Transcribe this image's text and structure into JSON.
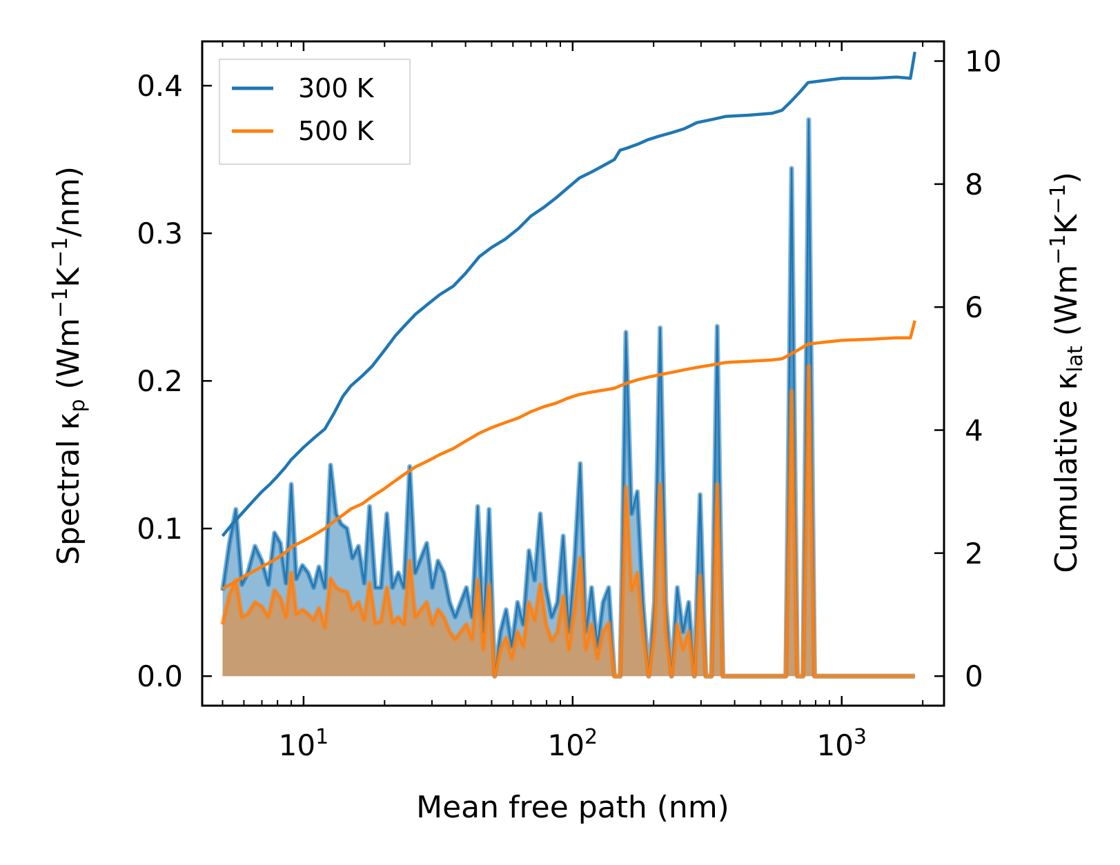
{
  "chart_data": {
    "type": "line",
    "xscale": "log",
    "xlabel": "Mean free path (nm)",
    "ylabel_left": "Spectral κp (Wm−1K−1/nm)",
    "ylabel_right": "Cumulative κlat (Wm−1K−1)",
    "ylabel_left_parts": {
      "pre": "Spectral κ",
      "sub": "p",
      "mid1": " (Wm",
      "sup1": "−1",
      "mid2": "K",
      "sup2": "−1",
      "post": "/nm)"
    },
    "ylabel_right_parts": {
      "pre": "Cumulative κ",
      "sub": "lat",
      "mid1": " (Wm",
      "sup1": "−1",
      "mid2": "K",
      "sup2": "−1",
      "post": ")"
    },
    "xlim": [
      4.2,
      2400
    ],
    "ylim_left": [
      -0.02,
      0.43
    ],
    "ylim_right": [
      -0.48,
      10.32
    ],
    "x_ticks": [
      {
        "base": "10",
        "exp": "1",
        "value": 10
      },
      {
        "base": "10",
        "exp": "2",
        "value": 100
      },
      {
        "base": "10",
        "exp": "3",
        "value": 1000
      }
    ],
    "y_left_ticks": [
      "0.0",
      "0.1",
      "0.2",
      "0.3",
      "0.4"
    ],
    "y_right_ticks": [
      "0",
      "2",
      "4",
      "6",
      "8",
      "10"
    ],
    "legend": [
      {
        "label": "300 K",
        "color": "#1f77b4"
      },
      {
        "label": "500 K",
        "color": "#ff7f0e"
      }
    ],
    "legend_position": "top-left",
    "series": [
      {
        "name": "300 K spectral",
        "axis": "left",
        "color": "#1f77b4",
        "fill": true,
        "x": [
          5.0,
          5.3,
          5.6,
          5.9,
          6.2,
          6.6,
          7.0,
          7.4,
          7.8,
          8.2,
          8.6,
          9.0,
          9.4,
          9.9,
          10.4,
          10.9,
          11.4,
          12.0,
          12.6,
          13.2,
          13.8,
          14.5,
          15.2,
          16.0,
          16.8,
          17.6,
          18.5,
          19.4,
          20.4,
          21.4,
          22.5,
          23.6,
          24.8,
          26.0,
          27.3,
          28.7,
          30.1,
          31.6,
          33.2,
          34.9,
          36.6,
          38.4,
          40.3,
          42.3,
          44.4,
          46.6,
          48.9,
          51.3,
          53.9,
          56.6,
          59.4,
          62.4,
          65.5,
          68.8,
          72.2,
          75.8,
          79.6,
          83.6,
          87.8,
          92.2,
          96.8,
          101.6,
          106.7,
          112.0,
          117.6,
          123.5,
          129.7,
          136.2,
          143.0,
          150.2,
          157.7,
          165.6,
          173.9,
          182.6,
          191.7,
          201.3,
          211.4,
          222.0,
          233.1,
          244.8,
          257.0,
          269.9,
          283.4,
          297.6,
          312.5,
          328.1,
          344.5,
          361.7,
          379.8,
          398.8,
          418.7,
          440.0,
          462.0,
          485.0,
          509.0,
          535.0,
          562.0,
          590.0,
          620.0,
          651.0,
          684.0,
          718.0,
          754.0,
          792.0,
          832.0,
          874.0,
          918.0,
          964.0,
          1012.0,
          1063.0,
          1116.0,
          1172.0,
          1231.0,
          1293.0,
          1358.0,
          1426.0,
          1497.0,
          1572.0,
          1651.0,
          1734.0,
          1821.0,
          1870.0
        ],
        "y": [
          0.058,
          0.09,
          0.113,
          0.062,
          0.07,
          0.088,
          0.078,
          0.062,
          0.097,
          0.09,
          0.063,
          0.13,
          0.066,
          0.075,
          0.07,
          0.06,
          0.074,
          0.06,
          0.143,
          0.11,
          0.103,
          0.1,
          0.08,
          0.088,
          0.063,
          0.115,
          0.06,
          0.06,
          0.11,
          0.06,
          0.07,
          0.06,
          0.142,
          0.07,
          0.08,
          0.09,
          0.06,
          0.078,
          0.07,
          0.05,
          0.04,
          0.05,
          0.06,
          0.04,
          0.115,
          0.03,
          0.113,
          0.0,
          0.03,
          0.045,
          0.02,
          0.05,
          0.035,
          0.085,
          0.065,
          0.11,
          0.06,
          0.04,
          0.05,
          0.095,
          0.03,
          0.078,
          0.144,
          0.03,
          0.06,
          0.02,
          0.05,
          0.06,
          0.0,
          0.0,
          0.233,
          0.11,
          0.125,
          0.05,
          0.0,
          0.05,
          0.236,
          0.05,
          0.0,
          0.06,
          0.03,
          0.05,
          0.0,
          0.123,
          0.0,
          0.0,
          0.237,
          0.0,
          0.0,
          0.0,
          0.0,
          0.0,
          0.0,
          0.0,
          0.0,
          0.0,
          0.0,
          0.0,
          0.0,
          0.344,
          0.0,
          0.0,
          0.377,
          0.0,
          0.0,
          0.0,
          0.0,
          0.0,
          0.0,
          0.0,
          0.0,
          0.0,
          0.0,
          0.0,
          0.0,
          0.0,
          0.0,
          0.0,
          0.0,
          0.0,
          0.0,
          0.0
        ]
      },
      {
        "name": "500 K spectral",
        "axis": "left",
        "color": "#ff7f0e",
        "fill": true,
        "x": [
          5.0,
          5.3,
          5.6,
          5.9,
          6.2,
          6.6,
          7.0,
          7.4,
          7.8,
          8.2,
          8.6,
          9.0,
          9.4,
          9.9,
          10.4,
          10.9,
          11.4,
          12.0,
          12.6,
          13.2,
          13.8,
          14.5,
          15.2,
          16.0,
          16.8,
          17.6,
          18.5,
          19.4,
          20.4,
          21.4,
          22.5,
          23.6,
          24.8,
          26.0,
          27.3,
          28.7,
          30.1,
          31.6,
          33.2,
          34.9,
          36.6,
          38.4,
          40.3,
          42.3,
          44.4,
          46.6,
          48.9,
          51.3,
          53.9,
          56.6,
          59.4,
          62.4,
          65.5,
          68.8,
          72.2,
          75.8,
          79.6,
          83.6,
          87.8,
          92.2,
          96.8,
          101.6,
          106.7,
          112.0,
          117.6,
          123.5,
          129.7,
          136.2,
          143.0,
          150.2,
          157.7,
          165.6,
          173.9,
          182.6,
          191.7,
          201.3,
          211.4,
          222.0,
          233.1,
          244.8,
          257.0,
          269.9,
          283.4,
          297.6,
          312.5,
          328.1,
          344.5,
          361.7,
          379.8,
          398.8,
          418.7,
          440.0,
          462.0,
          485.0,
          509.0,
          535.0,
          562.0,
          590.0,
          620.0,
          651.0,
          684.0,
          718.0,
          754.0,
          792.0,
          832.0,
          874.0,
          918.0,
          964.0,
          1012.0,
          1063.0,
          1116.0,
          1172.0,
          1231.0,
          1293.0,
          1358.0,
          1426.0,
          1497.0,
          1572.0,
          1651.0,
          1734.0,
          1821.0,
          1870.0
        ],
        "y": [
          0.035,
          0.055,
          0.065,
          0.04,
          0.042,
          0.05,
          0.047,
          0.04,
          0.058,
          0.053,
          0.04,
          0.07,
          0.042,
          0.045,
          0.042,
          0.038,
          0.046,
          0.033,
          0.066,
          0.06,
          0.058,
          0.057,
          0.045,
          0.05,
          0.038,
          0.063,
          0.036,
          0.037,
          0.06,
          0.036,
          0.04,
          0.035,
          0.078,
          0.04,
          0.045,
          0.05,
          0.035,
          0.045,
          0.04,
          0.03,
          0.025,
          0.03,
          0.035,
          0.025,
          0.065,
          0.018,
          0.062,
          0.0,
          0.018,
          0.026,
          0.012,
          0.03,
          0.02,
          0.05,
          0.038,
          0.062,
          0.035,
          0.024,
          0.03,
          0.054,
          0.018,
          0.045,
          0.08,
          0.018,
          0.035,
          0.012,
          0.03,
          0.036,
          0.0,
          0.0,
          0.128,
          0.058,
          0.07,
          0.03,
          0.0,
          0.03,
          0.13,
          0.03,
          0.0,
          0.035,
          0.018,
          0.03,
          0.0,
          0.068,
          0.0,
          0.0,
          0.13,
          0.0,
          0.0,
          0.0,
          0.0,
          0.0,
          0.0,
          0.0,
          0.0,
          0.0,
          0.0,
          0.0,
          0.0,
          0.193,
          0.0,
          0.0,
          0.21,
          0.0,
          0.0,
          0.0,
          0.0,
          0.0,
          0.0,
          0.0,
          0.0,
          0.0,
          0.0,
          0.0,
          0.0,
          0.0,
          0.0,
          0.0,
          0.0,
          0.0,
          0.0,
          0.0
        ]
      },
      {
        "name": "300 K cumulative",
        "axis": "right",
        "color": "#1f77b4",
        "fill": false,
        "x": [
          5.0,
          5.5,
          6.0,
          6.5,
          7.0,
          7.5,
          8.0,
          8.5,
          9.0,
          10.0,
          11.0,
          12.0,
          13.0,
          14.0,
          15.0,
          16.5,
          18.0,
          20.0,
          22.0,
          24.0,
          26.0,
          29.0,
          32.0,
          36.0,
          40.0,
          45.0,
          50.0,
          56.0,
          63.0,
          70.0,
          78.0,
          87.0,
          96.0,
          106.0,
          118.0,
          130.0,
          143.0,
          150.0,
          158.0,
          175.0,
          190.0,
          210.0,
          235.0,
          260.0,
          290.0,
          330.0,
          370.0,
          450.0,
          550.0,
          600.0,
          650.0,
          700.0,
          750.0,
          1000.0,
          1300.0,
          1600.0,
          1800.0,
          1870.0
        ],
        "y": [
          2.28,
          2.5,
          2.68,
          2.85,
          3.0,
          3.12,
          3.25,
          3.38,
          3.52,
          3.72,
          3.88,
          4.02,
          4.28,
          4.55,
          4.72,
          4.88,
          5.04,
          5.3,
          5.54,
          5.72,
          5.88,
          6.05,
          6.2,
          6.34,
          6.55,
          6.82,
          6.97,
          7.1,
          7.28,
          7.48,
          7.62,
          7.78,
          7.94,
          8.1,
          8.2,
          8.3,
          8.4,
          8.55,
          8.58,
          8.65,
          8.72,
          8.78,
          8.84,
          8.9,
          9.0,
          9.05,
          9.1,
          9.12,
          9.15,
          9.2,
          9.35,
          9.5,
          9.65,
          9.72,
          9.72,
          9.74,
          9.72,
          10.15
        ]
      },
      {
        "name": "500 K cumulative",
        "axis": "right",
        "color": "#ff7f0e",
        "fill": false,
        "x": [
          5.0,
          5.5,
          6.0,
          6.5,
          7.0,
          7.5,
          8.0,
          8.5,
          9.0,
          10.0,
          11.0,
          12.0,
          13.0,
          14.0,
          15.0,
          16.5,
          18.0,
          20.0,
          22.0,
          24.0,
          26.0,
          29.0,
          32.0,
          36.0,
          40.0,
          45.0,
          50.0,
          56.0,
          63.0,
          70.0,
          78.0,
          87.0,
          96.0,
          106.0,
          118.0,
          130.0,
          143.0,
          150.0,
          158.0,
          175.0,
          190.0,
          210.0,
          235.0,
          260.0,
          290.0,
          330.0,
          370.0,
          450.0,
          550.0,
          600.0,
          650.0,
          700.0,
          750.0,
          1000.0,
          1300.0,
          1600.0,
          1800.0,
          1870.0
        ],
        "y": [
          1.42,
          1.52,
          1.62,
          1.7,
          1.78,
          1.85,
          1.92,
          2.0,
          2.1,
          2.2,
          2.3,
          2.4,
          2.52,
          2.62,
          2.72,
          2.8,
          2.92,
          3.05,
          3.18,
          3.3,
          3.4,
          3.5,
          3.6,
          3.7,
          3.82,
          3.95,
          4.04,
          4.12,
          4.2,
          4.3,
          4.38,
          4.44,
          4.52,
          4.58,
          4.62,
          4.65,
          4.68,
          4.72,
          4.76,
          4.82,
          4.86,
          4.9,
          4.94,
          4.98,
          5.02,
          5.06,
          5.1,
          5.12,
          5.14,
          5.16,
          5.24,
          5.32,
          5.4,
          5.46,
          5.48,
          5.5,
          5.5,
          5.78
        ]
      }
    ]
  }
}
